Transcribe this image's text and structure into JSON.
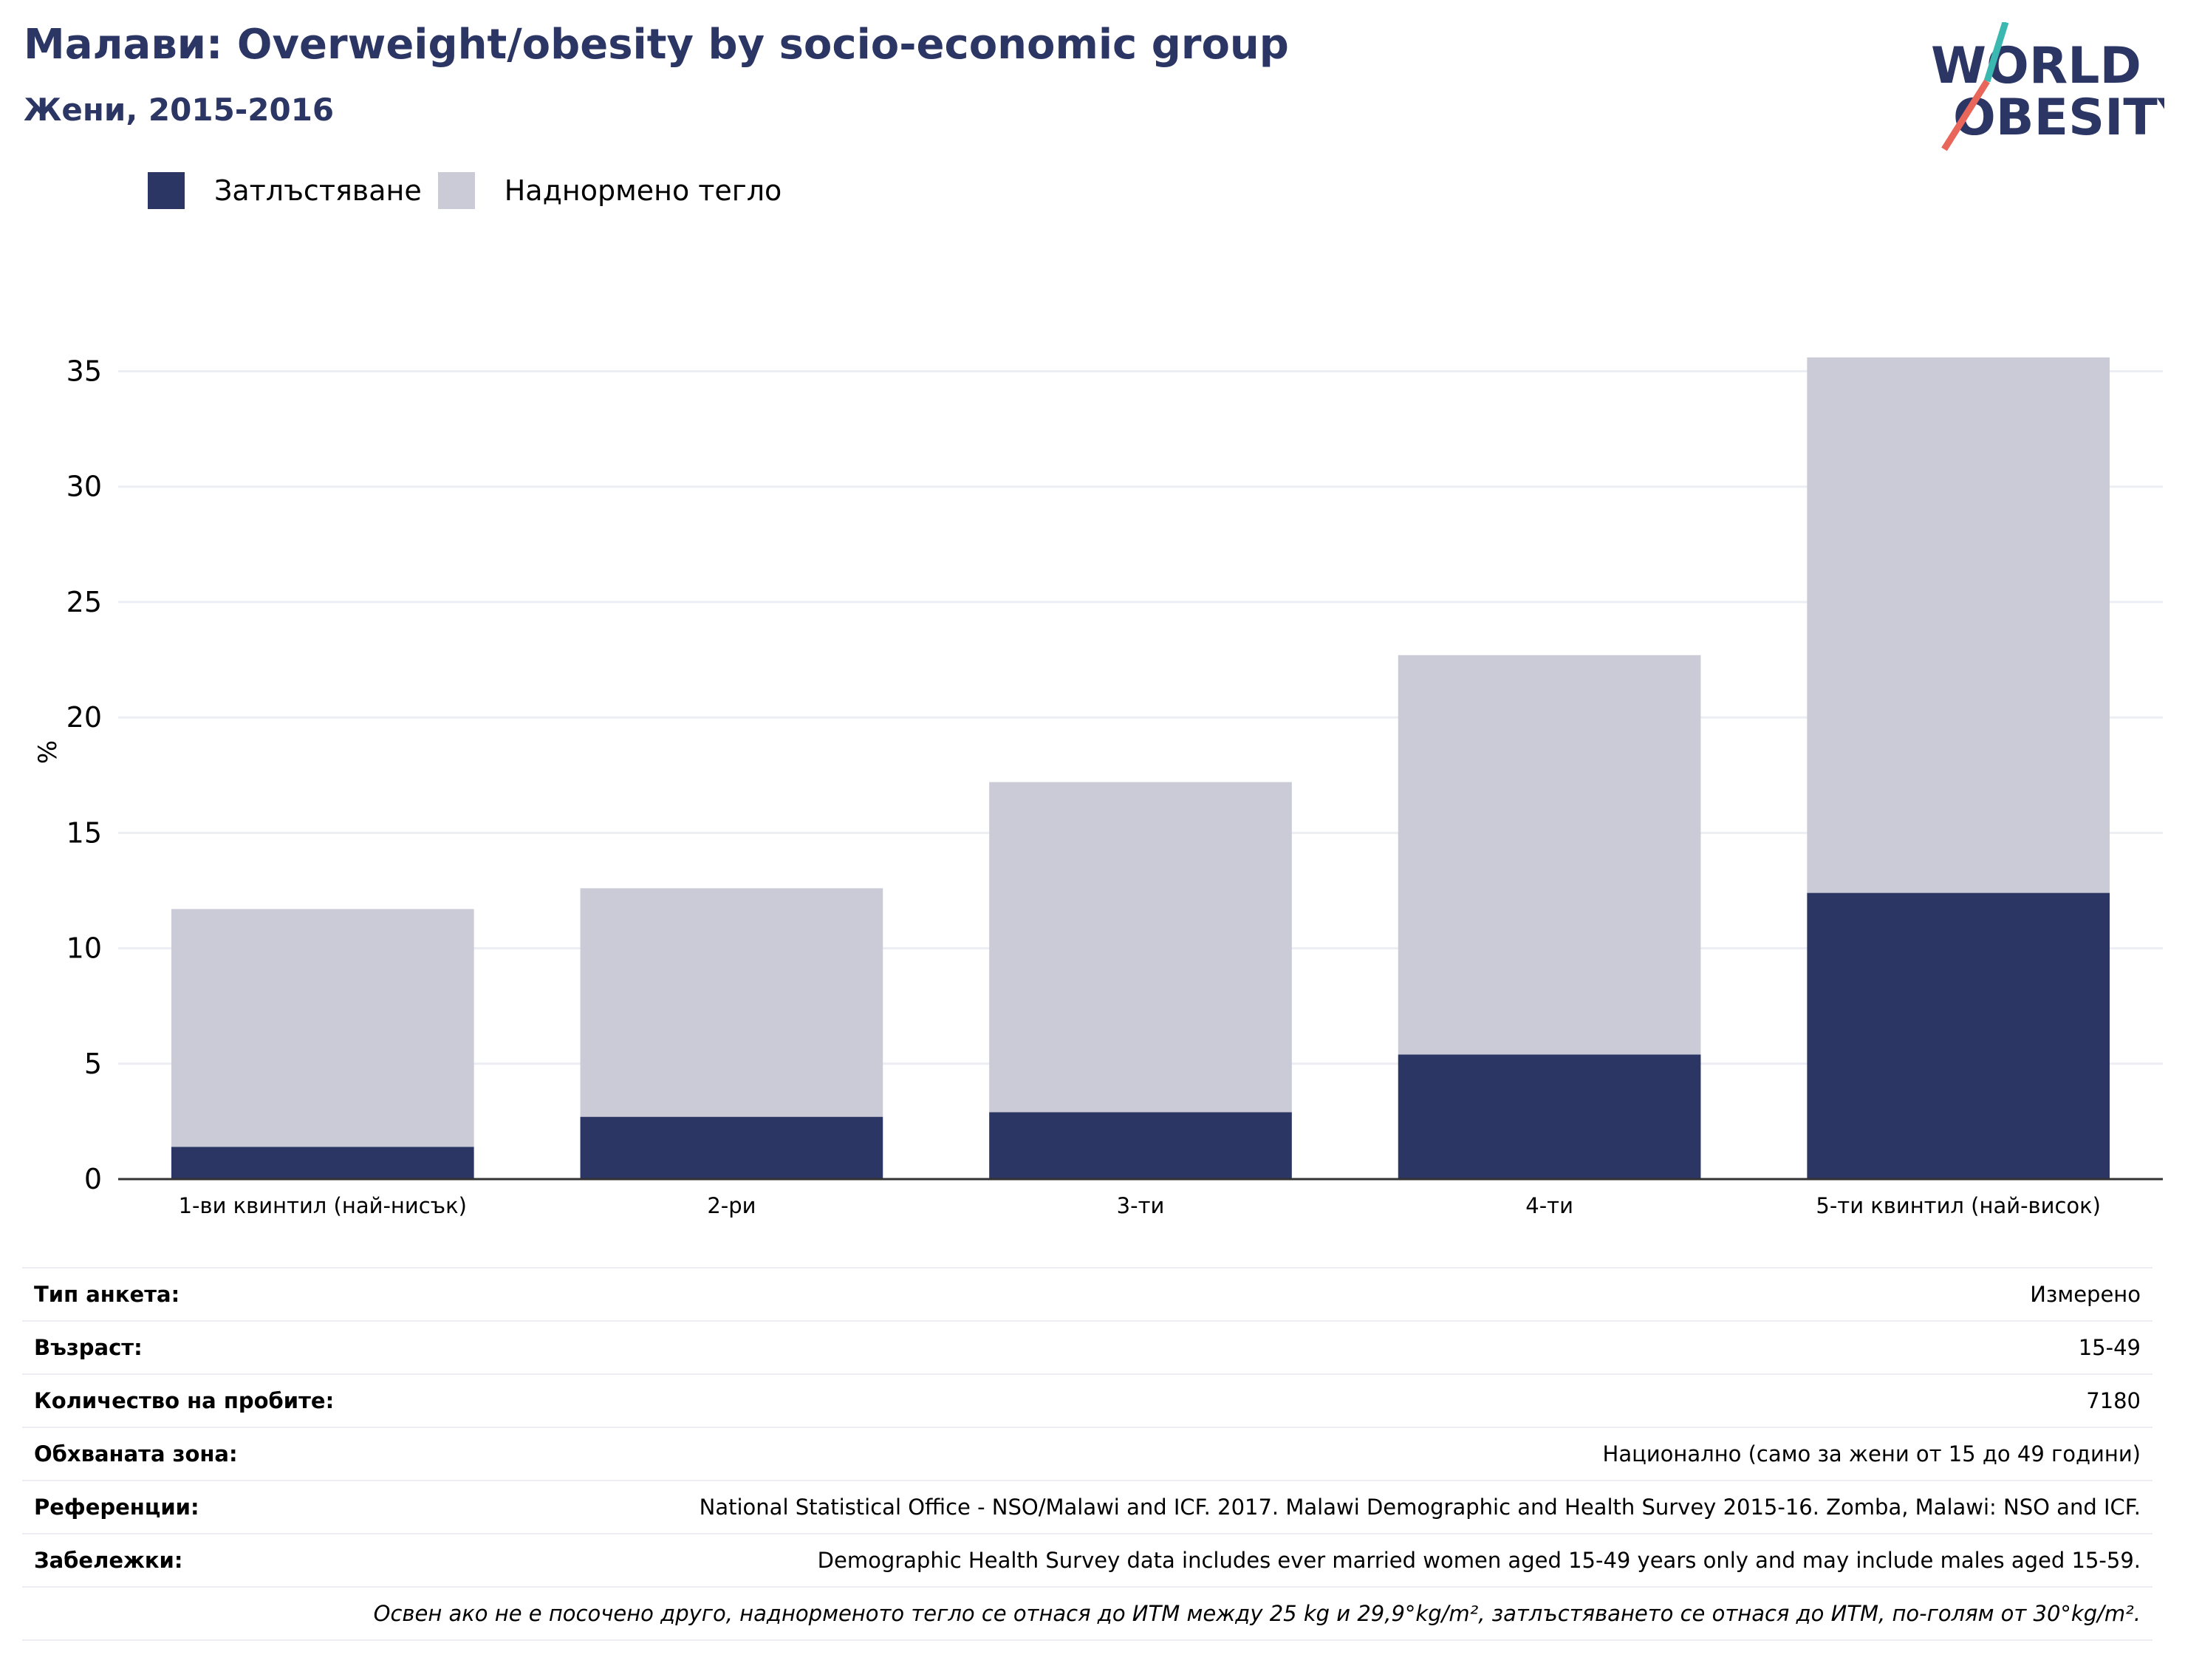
{
  "header": {
    "title": "Малави: Overweight/obesity by socio-economic group",
    "subtitle": "Жени, 2015-2016"
  },
  "logo": {
    "line1": "WORLD",
    "line2": "OBESITY",
    "accent_teal": "#3bb8b0",
    "accent_red": "#e8675a"
  },
  "legend": [
    {
      "label": "Затлъстяване",
      "color": "#2b3664"
    },
    {
      "label": "Наднормено тегло",
      "color": "#cacbd6"
    }
  ],
  "chart_data": {
    "type": "bar",
    "stacked": true,
    "ylabel": "%",
    "ylim": [
      0,
      37
    ],
    "yticks": [
      0,
      5,
      10,
      15,
      20,
      25,
      30,
      35
    ],
    "grid": true,
    "categories": [
      "1-ви квинтил (най-нисък)",
      "2-ри",
      "3-ти",
      "4-ти",
      "5-ти квинтил (най-висок)"
    ],
    "series": [
      {
        "name": "Затлъстяване",
        "color": "#2b3664",
        "values": [
          1.4,
          2.7,
          2.9,
          5.4,
          12.4
        ]
      },
      {
        "name": "Наднормено тегло",
        "color": "#cacbd6",
        "values": [
          10.3,
          9.9,
          14.3,
          17.3,
          23.2
        ]
      }
    ]
  },
  "meta": {
    "rows": [
      {
        "key": "Тип анкета:",
        "value": "Измерено"
      },
      {
        "key": "Възраст:",
        "value": "15-49"
      },
      {
        "key": "Количество на пробите:",
        "value": "7180"
      },
      {
        "key": "Обхваната зона:",
        "value": "Национално (само за жени от 15 до 49 години)"
      },
      {
        "key": "Референции:",
        "value": "National Statistical Office - NSO/Malawi and ICF. 2017. Malawi Demographic and Health Survey 2015-16. Zomba, Malawi: NSO and ICF."
      },
      {
        "key": "Забележки:",
        "value": "Demographic Health Survey data includes ever married women aged 15-49 years only and may include males aged 15-59."
      }
    ],
    "footnote": "Освен ако не е посочено друго, наднорменото тегло се отнася до ИТМ между 25 kg и 29,9°kg/m², затлъстяването се отнася до ИТМ, по-голям от 30°kg/m²."
  }
}
